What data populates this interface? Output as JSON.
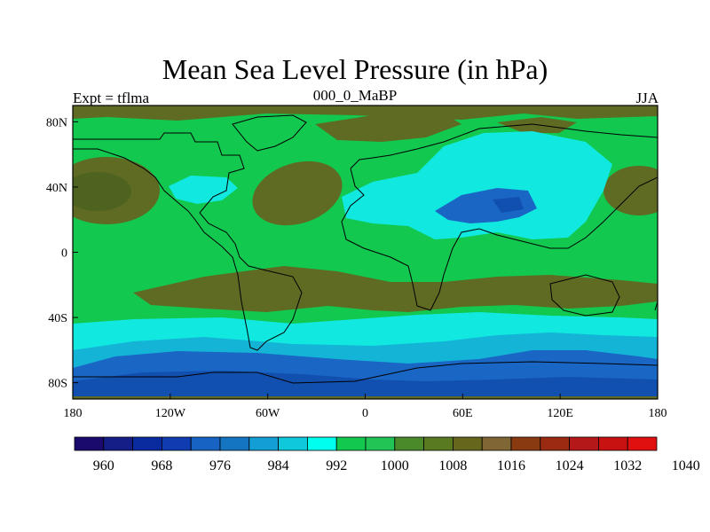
{
  "title": "Mean Sea Level Pressure (in hPa)",
  "left_label": "Expt = tflma",
  "center_label": "000_0_MaBP",
  "right_label": "JJA",
  "x_ticks": [
    {
      "lon": -180,
      "label": "180"
    },
    {
      "lon": -120,
      "label": "120W"
    },
    {
      "lon": -60,
      "label": "60W"
    },
    {
      "lon": 0,
      "label": "0"
    },
    {
      "lon": 60,
      "label": "60E"
    },
    {
      "lon": 120,
      "label": "120E"
    },
    {
      "lon": 180,
      "label": "180"
    }
  ],
  "y_ticks": [
    {
      "lat": 80,
      "label": "80N"
    },
    {
      "lat": 40,
      "label": "40N"
    },
    {
      "lat": 0,
      "label": "0"
    },
    {
      "lat": -40,
      "label": "40S"
    },
    {
      "lat": -80,
      "label": "80S"
    }
  ],
  "colorbar": {
    "colors": [
      "#1a0a6e",
      "#141e86",
      "#0a2ba0",
      "#0f3cb0",
      "#1763c4",
      "#1475c2",
      "#149ed6",
      "#10c8dc",
      "#00ffee",
      "#12c84f",
      "#22c455",
      "#4a8a2a",
      "#5a7a22",
      "#66671d",
      "#806634",
      "#8a3a10",
      "#9a2a10",
      "#b41818",
      "#c81212",
      "#e01010"
    ],
    "labels": [
      {
        "boundary": 2,
        "label": "960"
      },
      {
        "boundary": 4,
        "label": "968"
      },
      {
        "boundary": 6,
        "label": "976"
      },
      {
        "boundary": 8,
        "label": "984"
      },
      {
        "boundary": 10,
        "label": "992"
      },
      {
        "boundary": 12,
        "label": "1000"
      },
      {
        "boundary": 14,
        "label": "1008"
      },
      {
        "boundary": 16,
        "label": "1016"
      },
      {
        "boundary": 18,
        "label": "1024"
      },
      {
        "boundary": 20,
        "label": "1032"
      },
      {
        "boundary": 22,
        "label": "1040"
      }
    ]
  },
  "colors": {
    "background_field": "#12c84f",
    "high": "#5f6b22",
    "high_core": "#4f6320",
    "low_light": "#10e8e0",
    "low_mid": "#14b4d6",
    "low_deep": "#1a66c4",
    "low_core": "#1250b0",
    "coast": "#000000"
  }
}
